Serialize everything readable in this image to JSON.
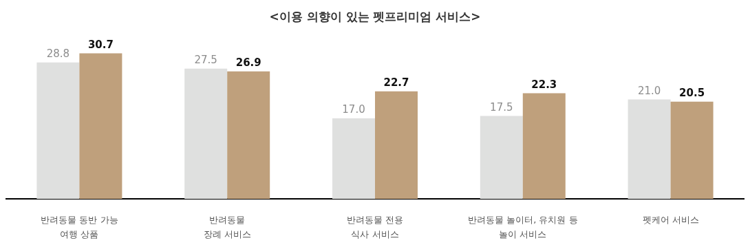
{
  "chart_data": {
    "type": "bar",
    "title": "<이용 의향이 있는 펫프리미엄 서비스>",
    "categories": [
      "반려동물 동반 가능\n여행 상품",
      "반려동물\n장례 서비스",
      "반려동물 전용\n식사 서비스",
      "반려동물 놀이터, 유치원 등\n놀이 서비스",
      "펫케어 서비스"
    ],
    "series": [
      {
        "color": "#dfe0df",
        "values": [
          28.8,
          27.5,
          17.0,
          17.5,
          21.0
        ],
        "value_labels": [
          "28.8",
          "27.5",
          "17.0",
          "17.5",
          "21.0"
        ]
      },
      {
        "color": "#bfa07c",
        "values": [
          30.7,
          26.9,
          22.7,
          22.3,
          20.5
        ],
        "value_labels": [
          "30.7",
          "26.9",
          "22.7",
          "22.3",
          "20.5"
        ]
      }
    ],
    "grid": false
  }
}
